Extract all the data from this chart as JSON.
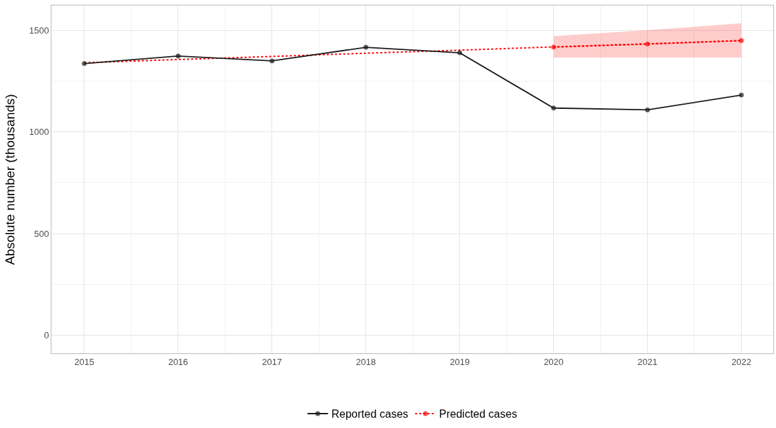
{
  "chart_data": {
    "type": "line",
    "ylabel": "Absolute number (thousands)",
    "series": [
      {
        "color": "#ff0000",
        "x": [
          2015,
          2016,
          2017,
          2018,
          2019,
          2020,
          2021,
          2022
        ],
        "values": [
          1341,
          1357,
          1372,
          1388,
          1403,
          1419,
          1434,
          1450
        ],
        "line_style": "dotted",
        "marker": "none"
      },
      {
        "name": "Reported cases",
        "color": "#1a1a1a",
        "x": [
          2015,
          2016,
          2017,
          2018,
          2019,
          2020,
          2021,
          2022
        ],
        "values": [
          1337,
          1374,
          1350,
          1417,
          1390,
          1118,
          1109,
          1182
        ],
        "line_style": "solid",
        "marker": "circle"
      },
      {
        "name": "Predicted cases",
        "color": "#ff0000",
        "x": [
          2020,
          2021,
          2022
        ],
        "values": [
          1418,
          1433,
          1450
        ],
        "lower": [
          1367,
          1367,
          1367
        ],
        "upper": [
          1472,
          1502,
          1535
        ],
        "line_style": "dotted",
        "marker": "circle"
      }
    ],
    "xlim": [
      2014.65,
      2022.34
    ],
    "xticks": [
      2015,
      2016,
      2017,
      2018,
      2019,
      2020,
      2021,
      2022
    ],
    "ylim": [
      -90,
      1623
    ],
    "yticks": [
      0,
      500,
      1000,
      1500
    ],
    "grid": true,
    "legend": "bottom"
  }
}
